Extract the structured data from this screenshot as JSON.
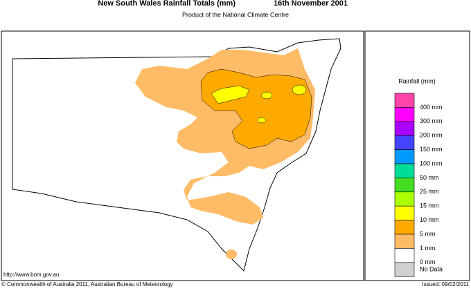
{
  "header": {
    "title": "New South Wales Rainfall Totals (mm)",
    "date": "16th November 2001",
    "subtitle": "Product of the National Climate Centre"
  },
  "legend": {
    "title": "Rainfall (mm)",
    "items": [
      {
        "label": "400 mm",
        "color": "#ff44aa"
      },
      {
        "label": "300 mm",
        "color": "#ff00ff"
      },
      {
        "label": "200 mm",
        "color": "#aa00ff"
      },
      {
        "label": "150 mm",
        "color": "#4444ff"
      },
      {
        "label": "100 mm",
        "color": "#0099ff"
      },
      {
        "label": "50 mm",
        "color": "#00dd99"
      },
      {
        "label": "25 mm",
        "color": "#44dd22"
      },
      {
        "label": "15 mm",
        "color": "#aaff00"
      },
      {
        "label": "10 mm",
        "color": "#ffff00"
      },
      {
        "label": "5 mm",
        "color": "#ffaa00"
      },
      {
        "label": "1 mm",
        "color": "#ffbb66"
      },
      {
        "label": "0 mm",
        "color": "#ffffff"
      },
      {
        "label": "No Data",
        "color": "#d0d0d0"
      }
    ]
  },
  "footer": {
    "url": "http://www.bom.gov.au",
    "copyright": "© Commonwealth of Australia 2011, Australian Bureau of Meteorology",
    "issued": "Issued: 09/02/2011"
  }
}
